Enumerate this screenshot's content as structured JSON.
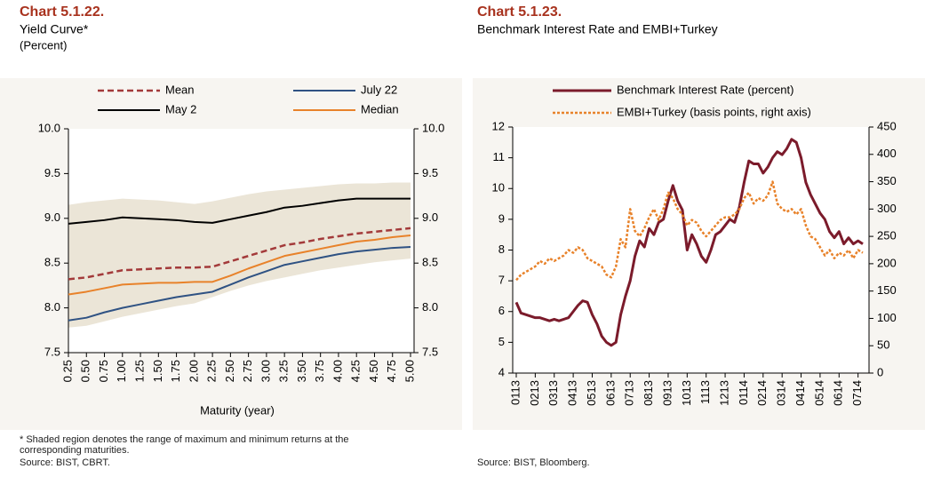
{
  "chart_data": [
    {
      "type": "line",
      "title": "Chart 5.1.22.",
      "subtitle": "Yield Curve*",
      "unit": "(Percent)",
      "xlabel": "Maturity (year)",
      "categories": [
        "0.25",
        "0.50",
        "0.75",
        "1.00",
        "1.25",
        "1.50",
        "1.75",
        "2.00",
        "2.25",
        "2.50",
        "2.75",
        "3.00",
        "3.25",
        "3.50",
        "3.75",
        "4.00",
        "4.25",
        "4.50",
        "4.75",
        "5.00"
      ],
      "band": {
        "color": "#ebe5d7",
        "upper": [
          9.15,
          9.18,
          9.2,
          9.22,
          9.21,
          9.2,
          9.18,
          9.16,
          9.19,
          9.23,
          9.27,
          9.3,
          9.32,
          9.34,
          9.36,
          9.38,
          9.39,
          9.39,
          9.4,
          9.4
        ],
        "lower": [
          7.78,
          7.8,
          7.85,
          7.9,
          7.94,
          7.98,
          8.02,
          8.05,
          8.12,
          8.19,
          8.25,
          8.3,
          8.34,
          8.38,
          8.42,
          8.45,
          8.48,
          8.51,
          8.53,
          8.55
        ]
      },
      "series": [
        {
          "name": "Mean",
          "color": "#a33a3a",
          "dash": true,
          "values": [
            8.32,
            8.34,
            8.38,
            8.42,
            8.43,
            8.44,
            8.45,
            8.45,
            8.46,
            8.52,
            8.58,
            8.64,
            8.7,
            8.73,
            8.77,
            8.8,
            8.83,
            8.85,
            8.87,
            8.89
          ]
        },
        {
          "name": "May 2",
          "color": "#000000",
          "values": [
            8.94,
            8.96,
            8.98,
            9.01,
            9.0,
            8.99,
            8.98,
            8.96,
            8.95,
            8.99,
            9.03,
            9.07,
            9.12,
            9.14,
            9.17,
            9.2,
            9.22,
            9.22,
            9.22,
            9.22
          ]
        },
        {
          "name": "July 22",
          "color": "#2f5283",
          "values": [
            7.86,
            7.89,
            7.95,
            8.0,
            8.04,
            8.08,
            8.12,
            8.15,
            8.18,
            8.26,
            8.34,
            8.41,
            8.48,
            8.52,
            8.56,
            8.6,
            8.63,
            8.65,
            8.67,
            8.68
          ]
        },
        {
          "name": "Median",
          "color": "#e8822a",
          "values": [
            8.15,
            8.18,
            8.22,
            8.26,
            8.27,
            8.28,
            8.28,
            8.29,
            8.29,
            8.36,
            8.44,
            8.51,
            8.58,
            8.62,
            8.66,
            8.7,
            8.74,
            8.76,
            8.79,
            8.81
          ]
        }
      ],
      "ylim": [
        7.5,
        10
      ],
      "yticks": [
        7.5,
        {
          "value": 8,
          "label": "8.0"
        },
        8.5,
        {
          "value": 9,
          "label": "9.0"
        },
        9.5,
        {
          "value": 10,
          "label": "10.0"
        }
      ],
      "y2lim": [
        7.5,
        10
      ],
      "y2ticks": [
        7.5,
        {
          "value": 8,
          "label": "8.0"
        },
        8.5,
        {
          "value": 9,
          "label": "9.0"
        },
        9.5,
        {
          "value": 10,
          "label": "10.0"
        }
      ],
      "note": "* Shaded region denotes the range of maximum and minimum returns at the corresponding maturities.",
      "source": "Source: BIST, CBRT."
    },
    {
      "type": "line",
      "title": "Chart 5.1.23.",
      "subtitle": "Benchmark Interest Rate and EMBI+Turkey",
      "categories": [
        "0113",
        null,
        null,
        null,
        "0213",
        null,
        null,
        null,
        "0313",
        null,
        null,
        null,
        "0413",
        null,
        null,
        null,
        "0513",
        null,
        null,
        null,
        "0613",
        null,
        null,
        null,
        "0713",
        null,
        null,
        null,
        "0813",
        null,
        null,
        null,
        "0913",
        null,
        null,
        null,
        "1013",
        null,
        null,
        null,
        "1113",
        null,
        null,
        null,
        "1213",
        null,
        null,
        null,
        "0114",
        null,
        null,
        null,
        "0214",
        null,
        null,
        null,
        "0314",
        null,
        null,
        null,
        "0414",
        null,
        null,
        null,
        "0514",
        null,
        null,
        null,
        "0614",
        null,
        null,
        null,
        "0714",
        null
      ],
      "series": [
        {
          "name": "Benchmark Interest Rate (percent)",
          "color": "#7b1b2b",
          "width": 3,
          "values": [
            6.3,
            5.95,
            5.9,
            5.85,
            5.8,
            5.8,
            5.75,
            5.7,
            5.75,
            5.7,
            5.75,
            5.8,
            6.0,
            6.2,
            6.35,
            6.3,
            5.9,
            5.6,
            5.2,
            5.0,
            4.9,
            5.0,
            5.9,
            6.5,
            7.0,
            7.8,
            8.3,
            8.1,
            8.7,
            8.5,
            8.9,
            9.0,
            9.6,
            10.1,
            9.6,
            9.3,
            8.0,
            8.5,
            8.2,
            7.8,
            7.6,
            8.0,
            8.5,
            8.6,
            8.8,
            9.0,
            8.9,
            9.4,
            10.2,
            10.9,
            10.8,
            10.8,
            10.5,
            10.7,
            11.0,
            11.2,
            11.1,
            11.3,
            11.6,
            11.5,
            11.0,
            10.2,
            9.8,
            9.5,
            9.2,
            9.0,
            8.6,
            8.4,
            8.6,
            8.2,
            8.4,
            8.2,
            8.3,
            8.2
          ]
        },
        {
          "name": "EMBI+Turkey (basis points, right axis)",
          "color": "#e8822a",
          "dash": true,
          "axis": "y2",
          "values": [
            170,
            180,
            185,
            190,
            195,
            205,
            200,
            210,
            205,
            210,
            215,
            225,
            220,
            230,
            225,
            210,
            205,
            200,
            195,
            180,
            175,
            195,
            245,
            230,
            300,
            260,
            250,
            265,
            285,
            300,
            280,
            300,
            330,
            320,
            300,
            290,
            270,
            280,
            275,
            260,
            250,
            260,
            270,
            280,
            285,
            285,
            290,
            300,
            320,
            330,
            310,
            320,
            315,
            325,
            350,
            310,
            300,
            295,
            300,
            290,
            300,
            270,
            250,
            245,
            230,
            215,
            225,
            210,
            220,
            215,
            225,
            210,
            225,
            220
          ]
        }
      ],
      "ylim": [
        4,
        12
      ],
      "yticks": [
        4,
        5,
        6,
        7,
        8,
        9,
        10,
        11,
        12
      ],
      "y2lim": [
        0,
        450
      ],
      "y2ticks": [
        0,
        50,
        100,
        150,
        200,
        250,
        300,
        350,
        400,
        450
      ],
      "source": "Source: BIST, Bloomberg."
    }
  ]
}
